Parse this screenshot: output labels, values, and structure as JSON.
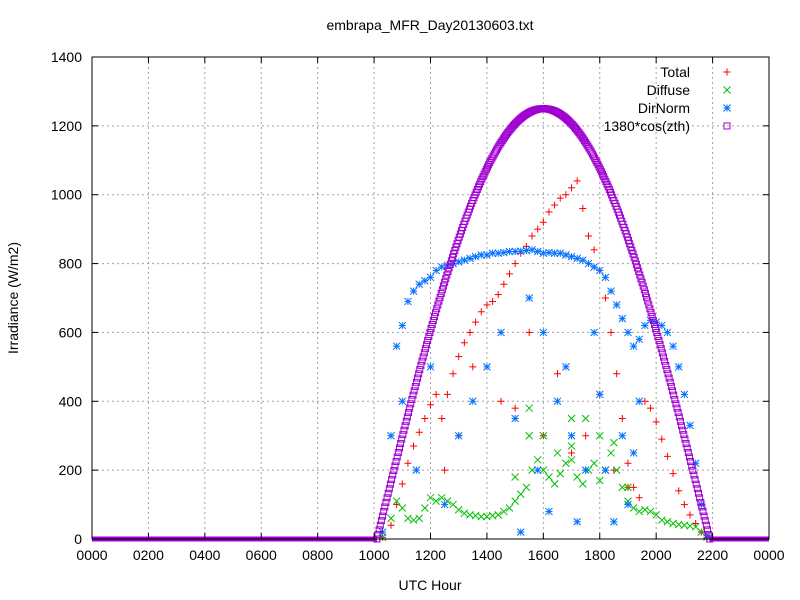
{
  "chart_data": {
    "type": "scatter",
    "title": "embrapa_MFR_Day20130603.txt",
    "xlabel": "UTC Hour",
    "ylabel": "Irradiance (W/m2)",
    "xlim": [
      0,
      2400
    ],
    "ylim": [
      0,
      1400
    ],
    "x_ticks": [
      "0000",
      "0200",
      "0400",
      "0600",
      "0800",
      "1000",
      "1200",
      "1400",
      "1600",
      "1800",
      "2000",
      "2200",
      "0000"
    ],
    "y_ticks": [
      "0",
      "200",
      "400",
      "600",
      "800",
      "1000",
      "1200",
      "1400"
    ],
    "grid": true,
    "legend_position": "top-right",
    "series": [
      {
        "name": "Total",
        "color": "#ff0000",
        "marker": "plus",
        "points": [
          [
            1030,
            5
          ],
          [
            1060,
            40
          ],
          [
            1080,
            100
          ],
          [
            1100,
            160
          ],
          [
            1120,
            220
          ],
          [
            1140,
            270
          ],
          [
            1160,
            310
          ],
          [
            1180,
            350
          ],
          [
            1200,
            390
          ],
          [
            1220,
            420
          ],
          [
            1240,
            350
          ],
          [
            1260,
            420
          ],
          [
            1280,
            480
          ],
          [
            1300,
            530
          ],
          [
            1320,
            570
          ],
          [
            1340,
            600
          ],
          [
            1360,
            630
          ],
          [
            1380,
            660
          ],
          [
            1400,
            680
          ],
          [
            1420,
            690
          ],
          [
            1440,
            710
          ],
          [
            1460,
            740
          ],
          [
            1480,
            770
          ],
          [
            1500,
            800
          ],
          [
            1520,
            830
          ],
          [
            1540,
            850
          ],
          [
            1560,
            880
          ],
          [
            1580,
            900
          ],
          [
            1600,
            920
          ],
          [
            1620,
            950
          ],
          [
            1640,
            970
          ],
          [
            1660,
            990
          ],
          [
            1680,
            1000
          ],
          [
            1700,
            1020
          ],
          [
            1720,
            1040
          ],
          [
            1740,
            960
          ],
          [
            1760,
            880
          ],
          [
            1780,
            840
          ],
          [
            1800,
            780
          ],
          [
            1820,
            700
          ],
          [
            1840,
            600
          ],
          [
            1860,
            480
          ],
          [
            1880,
            350
          ],
          [
            1900,
            220
          ],
          [
            1920,
            150
          ],
          [
            1940,
            120
          ],
          [
            1960,
            400
          ],
          [
            1980,
            380
          ],
          [
            2000,
            340
          ],
          [
            2020,
            290
          ],
          [
            2040,
            240
          ],
          [
            2060,
            190
          ],
          [
            2080,
            140
          ],
          [
            2100,
            100
          ],
          [
            2120,
            70
          ],
          [
            2140,
            45
          ],
          [
            2160,
            20
          ],
          [
            2180,
            5
          ],
          [
            1250,
            200
          ],
          [
            1300,
            300
          ],
          [
            1350,
            500
          ],
          [
            1450,
            400
          ],
          [
            1500,
            380
          ],
          [
            1550,
            600
          ],
          [
            1600,
            300
          ],
          [
            1650,
            480
          ],
          [
            1700,
            250
          ],
          [
            1750,
            300
          ],
          [
            1800,
            420
          ],
          [
            1850,
            200
          ],
          [
            1900,
            150
          ]
        ]
      },
      {
        "name": "Diffuse",
        "color": "#00c000",
        "marker": "cross",
        "points": [
          [
            1030,
            5
          ],
          [
            1060,
            60
          ],
          [
            1080,
            110
          ],
          [
            1100,
            90
          ],
          [
            1120,
            60
          ],
          [
            1140,
            55
          ],
          [
            1160,
            60
          ],
          [
            1180,
            90
          ],
          [
            1200,
            120
          ],
          [
            1220,
            110
          ],
          [
            1240,
            120
          ],
          [
            1260,
            110
          ],
          [
            1280,
            100
          ],
          [
            1300,
            85
          ],
          [
            1320,
            75
          ],
          [
            1340,
            70
          ],
          [
            1360,
            68
          ],
          [
            1380,
            65
          ],
          [
            1400,
            65
          ],
          [
            1420,
            68
          ],
          [
            1440,
            70
          ],
          [
            1460,
            80
          ],
          [
            1480,
            90
          ],
          [
            1500,
            110
          ],
          [
            1520,
            130
          ],
          [
            1540,
            150
          ],
          [
            1560,
            200
          ],
          [
            1580,
            230
          ],
          [
            1600,
            200
          ],
          [
            1620,
            180
          ],
          [
            1640,
            160
          ],
          [
            1660,
            190
          ],
          [
            1680,
            220
          ],
          [
            1700,
            230
          ],
          [
            1720,
            180
          ],
          [
            1740,
            160
          ],
          [
            1760,
            200
          ],
          [
            1780,
            220
          ],
          [
            1800,
            170
          ],
          [
            1820,
            200
          ],
          [
            1840,
            250
          ],
          [
            1860,
            200
          ],
          [
            1880,
            150
          ],
          [
            1900,
            110
          ],
          [
            1920,
            90
          ],
          [
            1940,
            80
          ],
          [
            1960,
            85
          ],
          [
            1980,
            80
          ],
          [
            2000,
            70
          ],
          [
            2020,
            55
          ],
          [
            2040,
            50
          ],
          [
            2060,
            45
          ],
          [
            2080,
            42
          ],
          [
            2100,
            40
          ],
          [
            2120,
            38
          ],
          [
            2140,
            35
          ],
          [
            2160,
            20
          ],
          [
            2180,
            5
          ],
          [
            1500,
            180
          ],
          [
            1550,
            380
          ],
          [
            1600,
            300
          ],
          [
            1650,
            250
          ],
          [
            1700,
            270
          ],
          [
            1750,
            350
          ],
          [
            1800,
            300
          ],
          [
            1850,
            280
          ],
          [
            1900,
            150
          ],
          [
            1550,
            300
          ],
          [
            1700,
            350
          ]
        ]
      },
      {
        "name": "DirNorm",
        "color": "#0070ff",
        "marker": "star",
        "points": [
          [
            1030,
            20
          ],
          [
            1060,
            300
          ],
          [
            1080,
            560
          ],
          [
            1100,
            620
          ],
          [
            1120,
            690
          ],
          [
            1140,
            720
          ],
          [
            1160,
            740
          ],
          [
            1180,
            750
          ],
          [
            1200,
            760
          ],
          [
            1220,
            780
          ],
          [
            1240,
            790
          ],
          [
            1260,
            795
          ],
          [
            1280,
            800
          ],
          [
            1300,
            805
          ],
          [
            1320,
            810
          ],
          [
            1340,
            815
          ],
          [
            1360,
            820
          ],
          [
            1380,
            825
          ],
          [
            1400,
            825
          ],
          [
            1420,
            830
          ],
          [
            1440,
            830
          ],
          [
            1460,
            832
          ],
          [
            1480,
            835
          ],
          [
            1500,
            835
          ],
          [
            1520,
            836
          ],
          [
            1540,
            838
          ],
          [
            1560,
            840
          ],
          [
            1580,
            835
          ],
          [
            1600,
            830
          ],
          [
            1620,
            832
          ],
          [
            1640,
            830
          ],
          [
            1660,
            830
          ],
          [
            1680,
            825
          ],
          [
            1700,
            820
          ],
          [
            1720,
            815
          ],
          [
            1740,
            810
          ],
          [
            1760,
            800
          ],
          [
            1780,
            790
          ],
          [
            1800,
            780
          ],
          [
            1820,
            760
          ],
          [
            1840,
            720
          ],
          [
            1860,
            680
          ],
          [
            1880,
            640
          ],
          [
            1900,
            600
          ],
          [
            1920,
            560
          ],
          [
            1940,
            580
          ],
          [
            1960,
            620
          ],
          [
            1980,
            635
          ],
          [
            2000,
            630
          ],
          [
            2020,
            620
          ],
          [
            2040,
            600
          ],
          [
            2060,
            560
          ],
          [
            2080,
            500
          ],
          [
            2100,
            420
          ],
          [
            2120,
            330
          ],
          [
            2140,
            220
          ],
          [
            2160,
            100
          ],
          [
            2180,
            10
          ],
          [
            1100,
            400
          ],
          [
            1150,
            200
          ],
          [
            1200,
            500
          ],
          [
            1250,
            100
          ],
          [
            1300,
            300
          ],
          [
            1350,
            400
          ],
          [
            1400,
            500
          ],
          [
            1450,
            600
          ],
          [
            1500,
            350
          ],
          [
            1520,
            20
          ],
          [
            1550,
            700
          ],
          [
            1580,
            200
          ],
          [
            1600,
            600
          ],
          [
            1620,
            80
          ],
          [
            1650,
            400
          ],
          [
            1680,
            500
          ],
          [
            1700,
            300
          ],
          [
            1720,
            50
          ],
          [
            1750,
            200
          ],
          [
            1780,
            600
          ],
          [
            1800,
            420
          ],
          [
            1820,
            200
          ],
          [
            1850,
            50
          ],
          [
            1880,
            300
          ],
          [
            1900,
            100
          ],
          [
            1920,
            250
          ],
          [
            1940,
            400
          ]
        ]
      },
      {
        "name": "1380*cos(zth)",
        "color": "#a000d0",
        "marker": "square",
        "curve": {
          "peak": 1250,
          "peak_x": 1600,
          "start_x": 1010,
          "end_x": 2190,
          "before_after_value": 0
        }
      }
    ]
  }
}
